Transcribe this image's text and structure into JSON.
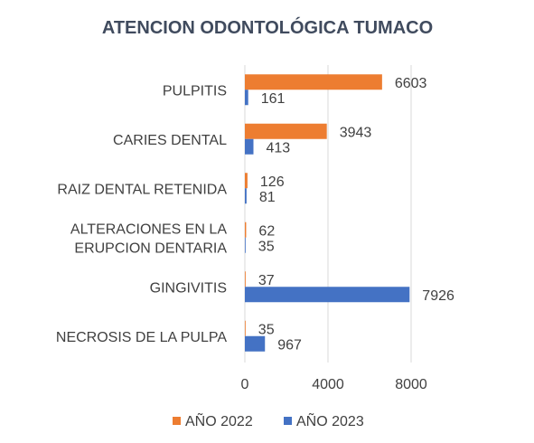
{
  "chart_data": {
    "type": "bar",
    "orientation": "horizontal",
    "title": "ATENCION ODONTOLÓGICA TUMACO",
    "categories": [
      [
        "PULPITIS"
      ],
      [
        "CARIES DENTAL"
      ],
      [
        "RAIZ DENTAL RETENIDA"
      ],
      [
        "ALTERACIONES EN LA",
        "ERUPCION DENTARIA"
      ],
      [
        "GINGIVITIS"
      ],
      [
        "NECROSIS DE LA PULPA"
      ]
    ],
    "series": [
      {
        "name": "AÑO 2022",
        "color": "#ed7d31",
        "values": [
          6603,
          3943,
          126,
          62,
          37,
          35
        ]
      },
      {
        "name": "AÑO 2023",
        "color": "#4472c4",
        "values": [
          161,
          413,
          81,
          35,
          7926,
          967
        ]
      }
    ],
    "xlim": [
      0,
      10000
    ],
    "xticks": [
      "0",
      "4000",
      "8000"
    ],
    "xtick_values": [
      0,
      4000,
      8000
    ],
    "grid": true,
    "legend": "bottom"
  }
}
